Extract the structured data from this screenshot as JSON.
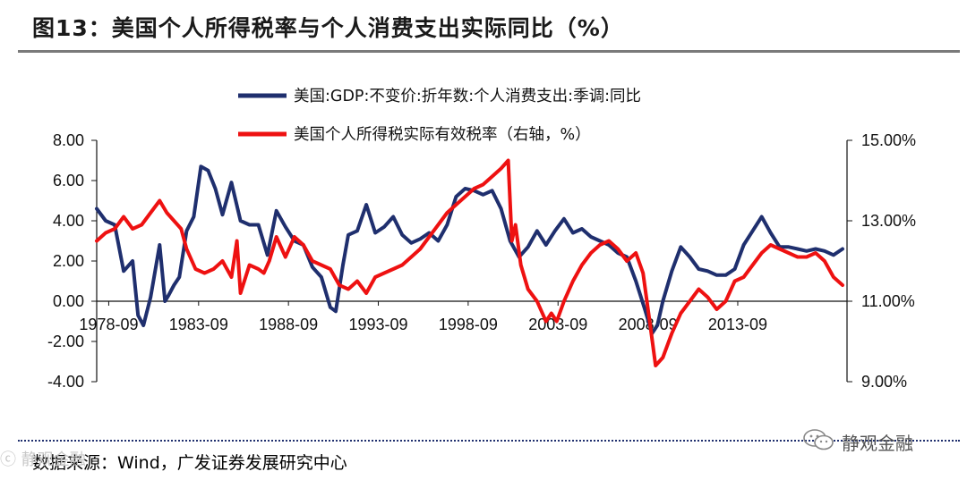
{
  "header": {
    "title": "图13：美国个人所得税率与个人消费支出实际同比（%）"
  },
  "footer": {
    "source": "数据来源：Wind，广发证券发展研究中心",
    "watermark": "静观金融",
    "corner_mark": "ⓒ 静观金融"
  },
  "colors": {
    "navy": "#1f2f6e",
    "red": "#ee1111",
    "rule": "#7a7a7a"
  },
  "chart_data": {
    "type": "line",
    "title": "",
    "legend": [
      "美国:GDP:不变价:折年数:个人消费支出:季调:同比",
      "美国个人所得税实际有效税率（右轴，%）"
    ],
    "legend_position": "top-center",
    "x_tick_labels": [
      "1978-09",
      "1983-09",
      "1988-09",
      "1993-09",
      "1998-09",
      "2003-09",
      "2008-09",
      "2013-09"
    ],
    "x_ticks": [
      1978.67,
      1983.67,
      1988.67,
      1993.67,
      1998.67,
      2003.67,
      2008.67,
      2013.67
    ],
    "xlim": [
      1978.0,
      2019.75
    ],
    "y_left": {
      "range": [
        -4,
        8
      ],
      "ticks": [
        "-4.00",
        "-2.00",
        "0.00",
        "2.00",
        "4.00",
        "6.00",
        "8.00"
      ]
    },
    "y_right": {
      "range": [
        9,
        15
      ],
      "ticks": [
        "9.00%",
        "11.00%",
        "13.00%",
        "15.00%"
      ]
    },
    "series": [
      {
        "name": "美国:GDP:不变价:折年数:个人消费支出:季调:同比",
        "axis": "left",
        "color": "#1f2f6e",
        "x": [
          1978.0,
          1978.5,
          1979.0,
          1979.5,
          1980.0,
          1980.3,
          1980.6,
          1981.0,
          1981.5,
          1981.8,
          1982.0,
          1982.3,
          1982.6,
          1983.0,
          1983.4,
          1983.8,
          1984.2,
          1984.6,
          1985.0,
          1985.5,
          1986.0,
          1986.5,
          1987.0,
          1987.5,
          1988.0,
          1988.5,
          1989.0,
          1989.5,
          1990.0,
          1990.5,
          1991.0,
          1991.3,
          1991.7,
          1992.0,
          1992.5,
          1993.0,
          1993.5,
          1994.0,
          1994.5,
          1995.0,
          1995.5,
          1996.0,
          1996.5,
          1997.0,
          1997.5,
          1998.0,
          1998.5,
          1999.0,
          1999.5,
          2000.0,
          2000.5,
          2001.0,
          2001.5,
          2002.0,
          2002.5,
          2003.0,
          2003.5,
          2004.0,
          2004.5,
          2005.0,
          2005.5,
          2006.0,
          2006.5,
          2007.0,
          2007.5,
          2008.0,
          2008.5,
          2008.9,
          2009.2,
          2009.5,
          2010.0,
          2010.5,
          2011.0,
          2011.5,
          2012.0,
          2012.5,
          2013.0,
          2013.5,
          2014.0,
          2014.5,
          2015.0,
          2015.5,
          2016.0,
          2016.5,
          2017.0,
          2017.5,
          2018.0,
          2018.5,
          2019.0,
          2019.5
        ],
        "values": [
          4.6,
          4.0,
          3.8,
          1.5,
          2.0,
          -0.7,
          -1.2,
          0.2,
          2.8,
          0.0,
          0.3,
          0.8,
          1.2,
          3.5,
          4.2,
          6.7,
          6.5,
          5.6,
          4.3,
          5.9,
          4.0,
          3.8,
          3.8,
          2.3,
          4.5,
          3.7,
          3.0,
          2.8,
          1.7,
          1.2,
          -0.3,
          -0.5,
          1.8,
          3.3,
          3.5,
          4.8,
          3.4,
          3.7,
          4.2,
          3.3,
          2.9,
          3.1,
          3.4,
          3.0,
          3.8,
          5.2,
          5.6,
          5.5,
          5.3,
          5.5,
          4.6,
          3.0,
          2.2,
          2.7,
          3.5,
          2.8,
          3.5,
          4.1,
          3.4,
          3.6,
          3.2,
          3.0,
          2.8,
          2.4,
          2.2,
          1.0,
          -0.4,
          -1.6,
          -1.2,
          0.0,
          1.5,
          2.7,
          2.2,
          1.6,
          1.5,
          1.3,
          1.3,
          1.6,
          2.8,
          3.5,
          4.2,
          3.4,
          2.7,
          2.7,
          2.6,
          2.5,
          2.6,
          2.5,
          2.3,
          2.6
        ]
      },
      {
        "name": "美国个人所得税实际有效税率（右轴，%）",
        "axis": "right",
        "color": "#ee1111",
        "x": [
          1978.0,
          1978.5,
          1979.0,
          1979.5,
          1980.0,
          1980.5,
          1981.0,
          1981.5,
          1981.9,
          1982.3,
          1982.7,
          1983.0,
          1983.5,
          1984.0,
          1984.5,
          1985.0,
          1985.5,
          1985.8,
          1986.0,
          1986.5,
          1987.0,
          1987.3,
          1987.6,
          1988.0,
          1988.5,
          1989.0,
          1989.5,
          1990.0,
          1990.5,
          1991.0,
          1991.5,
          1992.0,
          1992.5,
          1993.0,
          1993.5,
          1994.0,
          1994.5,
          1995.0,
          1995.5,
          1996.0,
          1996.5,
          1997.0,
          1997.5,
          1998.0,
          1998.5,
          1999.0,
          1999.5,
          2000.0,
          2000.5,
          2000.7,
          2000.9,
          2001.1,
          2001.3,
          2001.6,
          2002.0,
          2002.5,
          2003.0,
          2003.3,
          2003.6,
          2004.0,
          2004.5,
          2005.0,
          2005.5,
          2006.0,
          2006.5,
          2007.0,
          2007.5,
          2008.0,
          2008.4,
          2008.8,
          2009.1,
          2009.5,
          2010.0,
          2010.5,
          2011.0,
          2011.5,
          2012.0,
          2012.5,
          2013.0,
          2013.5,
          2014.0,
          2014.5,
          2015.0,
          2015.5,
          2016.0,
          2016.5,
          2017.0,
          2017.5,
          2018.0,
          2018.5,
          2019.0,
          2019.5
        ],
        "values": [
          12.5,
          12.7,
          12.8,
          13.1,
          12.8,
          12.9,
          13.2,
          13.5,
          13.2,
          13.0,
          12.8,
          12.3,
          11.8,
          11.7,
          11.8,
          12.0,
          11.6,
          12.5,
          11.2,
          11.9,
          11.8,
          11.7,
          12.0,
          12.6,
          12.1,
          12.6,
          12.4,
          12.0,
          11.9,
          11.8,
          11.4,
          11.3,
          11.5,
          11.2,
          11.6,
          11.7,
          11.8,
          11.9,
          12.1,
          12.3,
          12.6,
          12.9,
          13.2,
          13.4,
          13.6,
          13.8,
          13.9,
          14.1,
          14.3,
          14.4,
          14.5,
          12.5,
          12.9,
          11.9,
          11.3,
          11.0,
          10.5,
          10.7,
          10.5,
          11.0,
          11.5,
          11.9,
          12.2,
          12.4,
          12.5,
          12.3,
          12.0,
          12.2,
          11.7,
          10.4,
          9.4,
          9.6,
          10.2,
          10.7,
          11.0,
          11.3,
          11.1,
          10.8,
          11.0,
          11.5,
          11.6,
          11.9,
          12.2,
          12.4,
          12.3,
          12.2,
          12.1,
          12.1,
          12.2,
          12.0,
          11.6,
          11.4
        ]
      }
    ]
  }
}
